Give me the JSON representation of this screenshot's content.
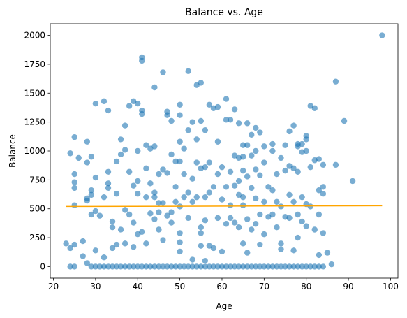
{
  "chart_data": {
    "type": "scatter",
    "title": "Balance vs. Age",
    "xlabel": "Age",
    "ylabel": "Balance",
    "xlim": [
      19.25,
      101.75
    ],
    "ylim": [
      -100,
      2100
    ],
    "xticks": [
      20,
      30,
      40,
      50,
      60,
      70,
      80,
      90,
      100
    ],
    "yticks": [
      0,
      250,
      500,
      750,
      1000,
      1250,
      1500,
      1750,
      2000
    ],
    "grid": false,
    "colors": {
      "points": "#1f77b4",
      "trend": "#ffa500"
    },
    "trend_line": {
      "x": [
        23,
        98
      ],
      "y": [
        520,
        526
      ]
    },
    "points": [
      [
        23,
        200
      ],
      [
        24,
        980
      ],
      [
        24,
        160
      ],
      [
        25,
        1120
      ],
      [
        25,
        800
      ],
      [
        25,
        730
      ],
      [
        25,
        680
      ],
      [
        25,
        530
      ],
      [
        25,
        190
      ],
      [
        24,
        0
      ],
      [
        25,
        0
      ],
      [
        26,
        940
      ],
      [
        27,
        220
      ],
      [
        27,
        90
      ],
      [
        28,
        1080
      ],
      [
        28,
        900
      ],
      [
        28,
        590
      ],
      [
        28,
        570
      ],
      [
        28,
        30
      ],
      [
        29,
        950
      ],
      [
        29,
        660
      ],
      [
        29,
        620
      ],
      [
        29,
        450
      ],
      [
        29,
        0
      ],
      [
        30,
        1410
      ],
      [
        30,
        770
      ],
      [
        30,
        480
      ],
      [
        30,
        140
      ],
      [
        30,
        0
      ],
      [
        31,
        440
      ],
      [
        31,
        0
      ],
      [
        32,
        1430
      ],
      [
        32,
        600
      ],
      [
        32,
        80
      ],
      [
        32,
        0
      ],
      [
        33,
        1350
      ],
      [
        33,
        820
      ],
      [
        33,
        720
      ],
      [
        33,
        680
      ],
      [
        33,
        0
      ],
      [
        34,
        390
      ],
      [
        34,
        340
      ],
      [
        34,
        160
      ],
      [
        34,
        0
      ],
      [
        35,
        910
      ],
      [
        35,
        630
      ],
      [
        35,
        190
      ],
      [
        35,
        0
      ],
      [
        36,
        1100
      ],
      [
        36,
        970
      ],
      [
        36,
        320
      ],
      [
        36,
        0
      ],
      [
        37,
        1220
      ],
      [
        37,
        1010
      ],
      [
        37,
        490
      ],
      [
        37,
        200
      ],
      [
        37,
        0
      ],
      [
        38,
        1390
      ],
      [
        38,
        820
      ],
      [
        38,
        450
      ],
      [
        38,
        0
      ],
      [
        39,
        1430
      ],
      [
        39,
        700
      ],
      [
        39,
        380
      ],
      [
        39,
        170
      ],
      [
        39,
        0
      ],
      [
        40,
        1410
      ],
      [
        40,
        1000
      ],
      [
        40,
        740
      ],
      [
        40,
        630
      ],
      [
        40,
        280
      ],
      [
        40,
        0
      ],
      [
        41,
        1810
      ],
      [
        41,
        1780
      ],
      [
        41,
        1350
      ],
      [
        41,
        1320
      ],
      [
        41,
        300
      ],
      [
        41,
        0
      ],
      [
        42,
        1050
      ],
      [
        42,
        850
      ],
      [
        42,
        600
      ],
      [
        42,
        200
      ],
      [
        42,
        0
      ],
      [
        43,
        1020
      ],
      [
        43,
        720
      ],
      [
        43,
        460
      ],
      [
        43,
        0
      ],
      [
        44,
        1550
      ],
      [
        44,
        1040
      ],
      [
        44,
        640
      ],
      [
        44,
        600
      ],
      [
        44,
        410
      ],
      [
        44,
        0
      ],
      [
        45,
        800
      ],
      [
        45,
        550
      ],
      [
        45,
        470
      ],
      [
        45,
        320
      ],
      [
        45,
        0
      ],
      [
        46,
        1680
      ],
      [
        46,
        840
      ],
      [
        46,
        550
      ],
      [
        46,
        230
      ],
      [
        46,
        0
      ],
      [
        47,
        1340
      ],
      [
        47,
        1310
      ],
      [
        47,
        810
      ],
      [
        47,
        440
      ],
      [
        47,
        0
      ],
      [
        48,
        1260
      ],
      [
        48,
        970
      ],
      [
        48,
        470
      ],
      [
        48,
        380
      ],
      [
        48,
        0
      ],
      [
        49,
        910
      ],
      [
        49,
        690
      ],
      [
        49,
        560
      ],
      [
        49,
        0
      ],
      [
        50,
        1400
      ],
      [
        50,
        1310
      ],
      [
        50,
        1080
      ],
      [
        50,
        910
      ],
      [
        50,
        520
      ],
      [
        50,
        290
      ],
      [
        50,
        210
      ],
      [
        50,
        130
      ],
      [
        50,
        0
      ],
      [
        51,
        1020
      ],
      [
        51,
        800
      ],
      [
        51,
        600
      ],
      [
        51,
        0
      ],
      [
        52,
        1690
      ],
      [
        52,
        1180
      ],
      [
        52,
        640
      ],
      [
        52,
        420
      ],
      [
        52,
        0
      ],
      [
        53,
        1250
      ],
      [
        53,
        760
      ],
      [
        53,
        560
      ],
      [
        53,
        60
      ],
      [
        53,
        0
      ],
      [
        54,
        1570
      ],
      [
        54,
        1100
      ],
      [
        54,
        900
      ],
      [
        54,
        600
      ],
      [
        54,
        0
      ],
      [
        55,
        1590
      ],
      [
        55,
        1260
      ],
      [
        55,
        850
      ],
      [
        55,
        340
      ],
      [
        55,
        290
      ],
      [
        55,
        180
      ],
      [
        55,
        0
      ],
      [
        56,
        1180
      ],
      [
        56,
        860
      ],
      [
        56,
        600
      ],
      [
        56,
        400
      ],
      [
        56,
        50
      ],
      [
        56,
        0
      ],
      [
        57,
        1400
      ],
      [
        57,
        900
      ],
      [
        57,
        640
      ],
      [
        57,
        180
      ],
      [
        57,
        0
      ],
      [
        58,
        1370
      ],
      [
        58,
        690
      ],
      [
        58,
        160
      ],
      [
        58,
        0
      ],
      [
        59,
        1380
      ],
      [
        59,
        1080
      ],
      [
        59,
        800
      ],
      [
        59,
        420
      ],
      [
        59,
        0
      ],
      [
        60,
        860
      ],
      [
        60,
        580
      ],
      [
        60,
        130
      ],
      [
        60,
        0
      ],
      [
        61,
        1450
      ],
      [
        61,
        1270
      ],
      [
        61,
        690
      ],
      [
        61,
        370
      ],
      [
        61,
        0
      ],
      [
        62,
        1270
      ],
      [
        62,
        820
      ],
      [
        62,
        530
      ],
      [
        62,
        420
      ],
      [
        62,
        0
      ],
      [
        63,
        1360
      ],
      [
        63,
        960
      ],
      [
        63,
        700
      ],
      [
        63,
        380
      ],
      [
        63,
        0
      ],
      [
        64,
        1240
      ],
      [
        64,
        940
      ],
      [
        64,
        740
      ],
      [
        64,
        620
      ],
      [
        64,
        340
      ],
      [
        64,
        0
      ],
      [
        65,
        1050
      ],
      [
        65,
        950
      ],
      [
        65,
        830
      ],
      [
        65,
        600
      ],
      [
        65,
        530
      ],
      [
        65,
        200
      ],
      [
        65,
        0
      ],
      [
        66,
        1240
      ],
      [
        66,
        1050
      ],
      [
        66,
        780
      ],
      [
        66,
        410
      ],
      [
        66,
        120
      ],
      [
        66,
        0
      ],
      [
        67,
        1140
      ],
      [
        67,
        960
      ],
      [
        67,
        680
      ],
      [
        67,
        320
      ],
      [
        67,
        0
      ],
      [
        68,
        1200
      ],
      [
        68,
        1000
      ],
      [
        68,
        840
      ],
      [
        68,
        590
      ],
      [
        68,
        370
      ],
      [
        68,
        0
      ],
      [
        69,
        1160
      ],
      [
        69,
        790
      ],
      [
        69,
        450
      ],
      [
        69,
        190
      ],
      [
        69,
        0
      ],
      [
        70,
        1040
      ],
      [
        70,
        900
      ],
      [
        70,
        560
      ],
      [
        70,
        280
      ],
      [
        70,
        0
      ],
      [
        71,
        690
      ],
      [
        71,
        430
      ],
      [
        71,
        0
      ],
      [
        72,
        1060
      ],
      [
        72,
        1000
      ],
      [
        72,
        660
      ],
      [
        72,
        450
      ],
      [
        72,
        0
      ],
      [
        73,
        800
      ],
      [
        73,
        560
      ],
      [
        73,
        340
      ],
      [
        73,
        0
      ],
      [
        74,
        940
      ],
      [
        74,
        520
      ],
      [
        74,
        200
      ],
      [
        74,
        150
      ],
      [
        74,
        0
      ],
      [
        75,
        1050
      ],
      [
        75,
        830
      ],
      [
        75,
        430
      ],
      [
        75,
        0
      ],
      [
        76,
        1170
      ],
      [
        76,
        870
      ],
      [
        76,
        620
      ],
      [
        76,
        420
      ],
      [
        76,
        0
      ],
      [
        77,
        1220
      ],
      [
        77,
        850
      ],
      [
        77,
        560
      ],
      [
        77,
        140
      ],
      [
        77,
        0
      ],
      [
        78,
        1060
      ],
      [
        78,
        1040
      ],
      [
        78,
        820
      ],
      [
        78,
        450
      ],
      [
        78,
        250
      ],
      [
        78,
        0
      ],
      [
        79,
        1060
      ],
      [
        79,
        990
      ],
      [
        79,
        600
      ],
      [
        79,
        390
      ],
      [
        79,
        0
      ],
      [
        80,
        1130
      ],
      [
        80,
        1100
      ],
      [
        80,
        1000
      ],
      [
        80,
        540
      ],
      [
        80,
        350
      ],
      [
        80,
        0
      ],
      [
        81,
        1390
      ],
      [
        81,
        860
      ],
      [
        81,
        520
      ],
      [
        81,
        0
      ],
      [
        82,
        1370
      ],
      [
        82,
        920
      ],
      [
        82,
        320
      ],
      [
        82,
        0
      ],
      [
        83,
        930
      ],
      [
        83,
        660
      ],
      [
        83,
        450
      ],
      [
        83,
        100
      ],
      [
        83,
        0
      ],
      [
        84,
        880
      ],
      [
        84,
        690
      ],
      [
        84,
        630
      ],
      [
        84,
        290
      ],
      [
        84,
        0
      ],
      [
        85,
        120
      ],
      [
        86,
        20
      ],
      [
        87,
        1600
      ],
      [
        87,
        880
      ],
      [
        89,
        1260
      ],
      [
        91,
        740
      ],
      [
        98,
        2000
      ]
    ]
  }
}
